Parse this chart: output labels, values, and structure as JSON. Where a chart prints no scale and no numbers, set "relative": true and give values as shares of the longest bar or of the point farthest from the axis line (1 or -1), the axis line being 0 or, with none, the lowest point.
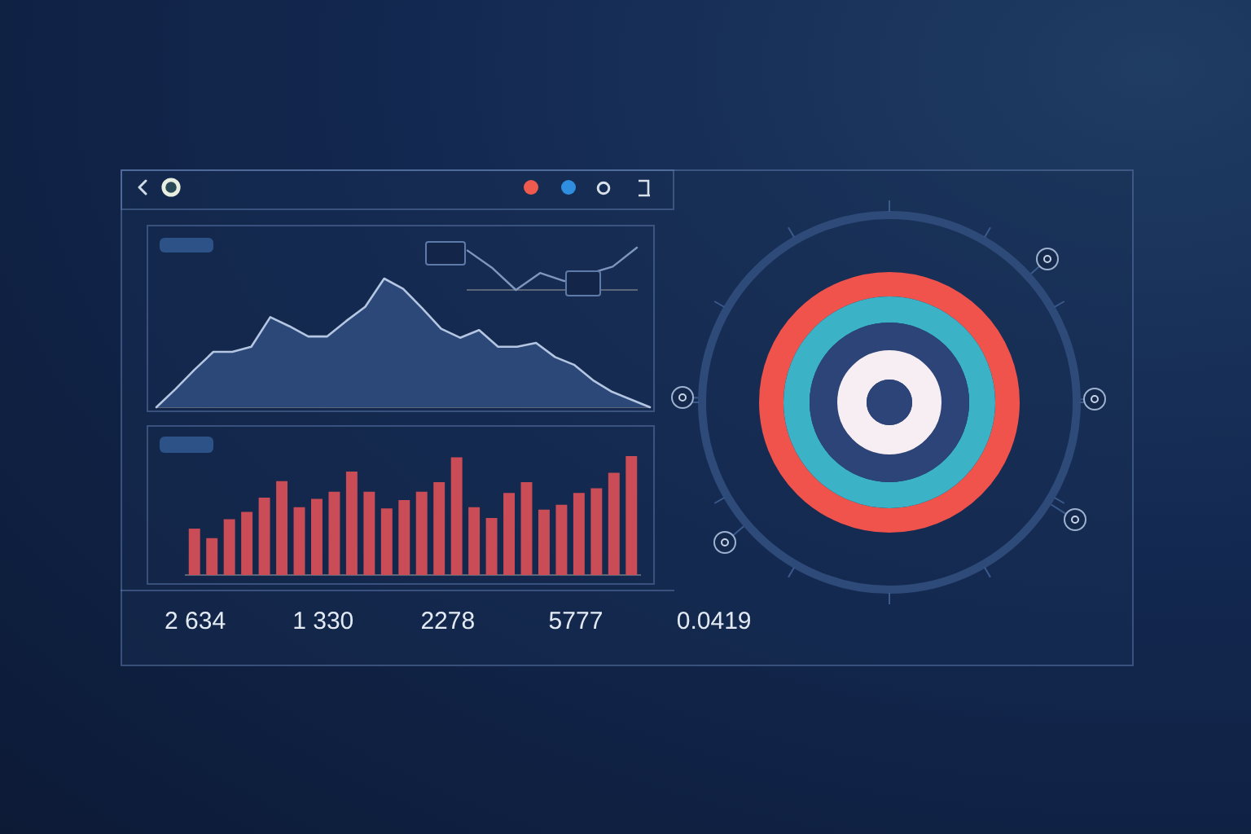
{
  "chart_data": [
    {
      "type": "area",
      "relative": true,
      "categories": [
        null,
        null,
        null,
        null,
        null,
        null,
        null,
        null,
        null,
        null,
        null,
        null,
        null,
        null,
        null,
        null,
        null,
        null,
        null,
        null,
        null,
        null,
        null,
        null,
        null,
        null,
        null
      ],
      "values": [
        0,
        0.14,
        0.29,
        0.43,
        0.43,
        0.47,
        0.7,
        0.63,
        0.55,
        0.55,
        0.67,
        0.78,
        1,
        0.92,
        0.77,
        0.61,
        0.54,
        0.6,
        0.47,
        0.47,
        0.5,
        0.39,
        0.33,
        0.21,
        0.12,
        0.06,
        0
      ],
      "color": "#2b4878"
    },
    {
      "type": "line",
      "relative": true,
      "categories": [
        null,
        null,
        null,
        null,
        null,
        null,
        null,
        null
      ],
      "values": [
        0.93,
        0.53,
        0,
        0.4,
        0.21,
        null,
        0.55,
        1
      ],
      "color": "#7f97bf"
    },
    {
      "type": "bar",
      "relative": true,
      "categories": [
        null,
        null,
        null,
        null,
        null,
        null,
        null,
        null,
        null,
        null,
        null,
        null,
        null,
        null,
        null,
        null,
        null,
        null,
        null,
        null,
        null,
        null,
        null,
        null,
        null,
        null
      ],
      "values": [
        0.39,
        0.31,
        0.47,
        0.53,
        0.65,
        0.79,
        0.57,
        0.64,
        0.7,
        0.87,
        0.7,
        0.56,
        0.63,
        0.7,
        0.78,
        0.99,
        0.57,
        0.48,
        0.69,
        0.78,
        0.55,
        0.59,
        0.69,
        0.73,
        0.86,
        1
      ],
      "color": "#c94c56"
    },
    {
      "type": "other",
      "annotations": [
        "2 634",
        "1 330",
        "2278",
        "5777",
        "0.0419"
      ]
    }
  ]
}
